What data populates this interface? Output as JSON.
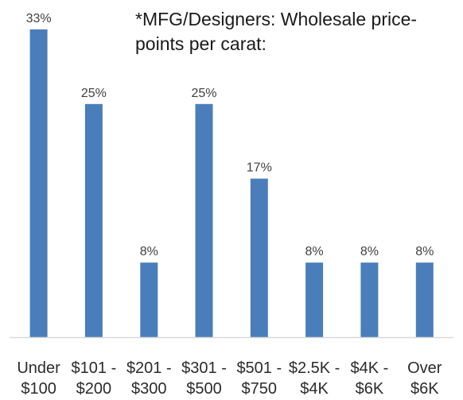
{
  "chart_data": {
    "type": "bar",
    "title": "*MFG/Designers: Wholesale price-points per carat:",
    "title_lines": [
      "*MFG/Designers: Wholesale price-",
      "points per carat:"
    ],
    "categories": [
      [
        "Under",
        "$100"
      ],
      [
        "$101 -",
        "$200"
      ],
      [
        "$201 -",
        "$300"
      ],
      [
        "$301 -",
        "$500"
      ],
      [
        "$501 -",
        "$750"
      ],
      [
        "$2.5K -",
        "$4K"
      ],
      [
        "$4K -",
        "$6K"
      ],
      [
        "Over",
        "$6K"
      ]
    ],
    "values": [
      33,
      25,
      8,
      25,
      17,
      8,
      8,
      8
    ],
    "data_labels": [
      "33%",
      "25%",
      "8%",
      "25%",
      "17%",
      "8%",
      "8%",
      "8%"
    ],
    "value_unit": "%",
    "ylim": [
      0,
      33
    ],
    "grid": false,
    "legend": "none",
    "bar_color": "#4a7ebb",
    "axis_color": "#d9d9d9"
  }
}
